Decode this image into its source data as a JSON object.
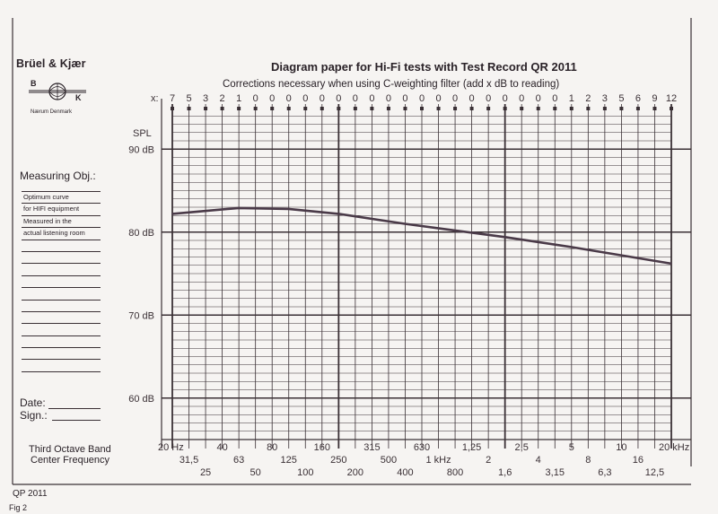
{
  "header": {
    "brand": "Brüel & Kjær",
    "logo_letters": [
      "B",
      "K"
    ],
    "location": "Nærum Denmark",
    "title": "Diagram paper for Hi-Fi tests with Test Record QR 2011",
    "subtitle": "Corrections necessary when using C-weighting filter (add x dB to reading)"
  },
  "sidebar": {
    "measuring_label": "Measuring Obj.:",
    "notes": [
      "Optimum curve",
      "for HIFI equipment",
      "Measured in the",
      "actual listening room"
    ],
    "date_label": "Date:",
    "sign_label": "Sign.:",
    "axis_caption_line1": "Third Octave Band",
    "axis_caption_line2": "Center Frequency"
  },
  "footer": {
    "code": "QP 2011",
    "fig": "Fig 2"
  },
  "colors": {
    "grid": "#3a3035",
    "curve": "#4a3a48",
    "paper": "#f6f4f2"
  },
  "chart_data": {
    "type": "line",
    "xscale": "log",
    "ylabel": "SPL",
    "ylim": [
      55,
      95
    ],
    "y_ticks": [
      {
        "label": "90 dB",
        "value": 90
      },
      {
        "label": "80 dB",
        "value": 80
      },
      {
        "label": "70 dB",
        "value": 70
      },
      {
        "label": "60 dB",
        "value": 60
      }
    ],
    "x_prefix": "x:",
    "corrections": [
      "7",
      "5",
      "3",
      "2",
      "1",
      "0",
      "0",
      "0",
      "0",
      "0",
      "0",
      "0",
      "0",
      "0",
      "0",
      "0",
      "0",
      "0",
      "0",
      "0",
      "0",
      "0",
      "0",
      "0",
      "1",
      "2",
      "3",
      "5",
      "6",
      "9",
      "12"
    ],
    "freq_row1": [
      {
        "i": 0,
        "t": "20 Hz"
      },
      {
        "i": 3,
        "t": "40"
      },
      {
        "i": 6,
        "t": "80"
      },
      {
        "i": 9,
        "t": "160"
      },
      {
        "i": 12,
        "t": "315"
      },
      {
        "i": 15,
        "t": "630"
      },
      {
        "i": 18,
        "t": "1,25"
      },
      {
        "i": 21,
        "t": "2,5"
      },
      {
        "i": 24,
        "t": "5"
      },
      {
        "i": 27,
        "t": "10"
      },
      {
        "i": 30,
        "t": "20 kHz"
      }
    ],
    "freq_row2": [
      {
        "i": 1,
        "t": "31,5"
      },
      {
        "i": 4,
        "t": "63"
      },
      {
        "i": 7,
        "t": "125"
      },
      {
        "i": 10,
        "t": "250"
      },
      {
        "i": 13,
        "t": "500"
      },
      {
        "i": 16,
        "t": "1 kHz"
      },
      {
        "i": 19,
        "t": "2"
      },
      {
        "i": 22,
        "t": "4"
      },
      {
        "i": 25,
        "t": "8"
      },
      {
        "i": 28,
        "t": "16"
      }
    ],
    "freq_row3": [
      {
        "i": 2,
        "t": "25"
      },
      {
        "i": 5,
        "t": "50"
      },
      {
        "i": 8,
        "t": "100"
      },
      {
        "i": 11,
        "t": "200"
      },
      {
        "i": 14,
        "t": "400"
      },
      {
        "i": 17,
        "t": "800"
      },
      {
        "i": 20,
        "t": "1,6"
      },
      {
        "i": 23,
        "t": "3,15"
      },
      {
        "i": 26,
        "t": "6,3"
      },
      {
        "i": 29,
        "t": "12,5"
      }
    ],
    "series": [
      {
        "x": [
          20,
          50,
          100,
          200,
          500,
          1000,
          2000,
          5000,
          10000,
          20000
        ],
        "y": [
          82.2,
          82.9,
          82.8,
          82.2,
          81.0,
          80.2,
          79.4,
          78.2,
          77.2,
          76.2
        ]
      }
    ]
  }
}
